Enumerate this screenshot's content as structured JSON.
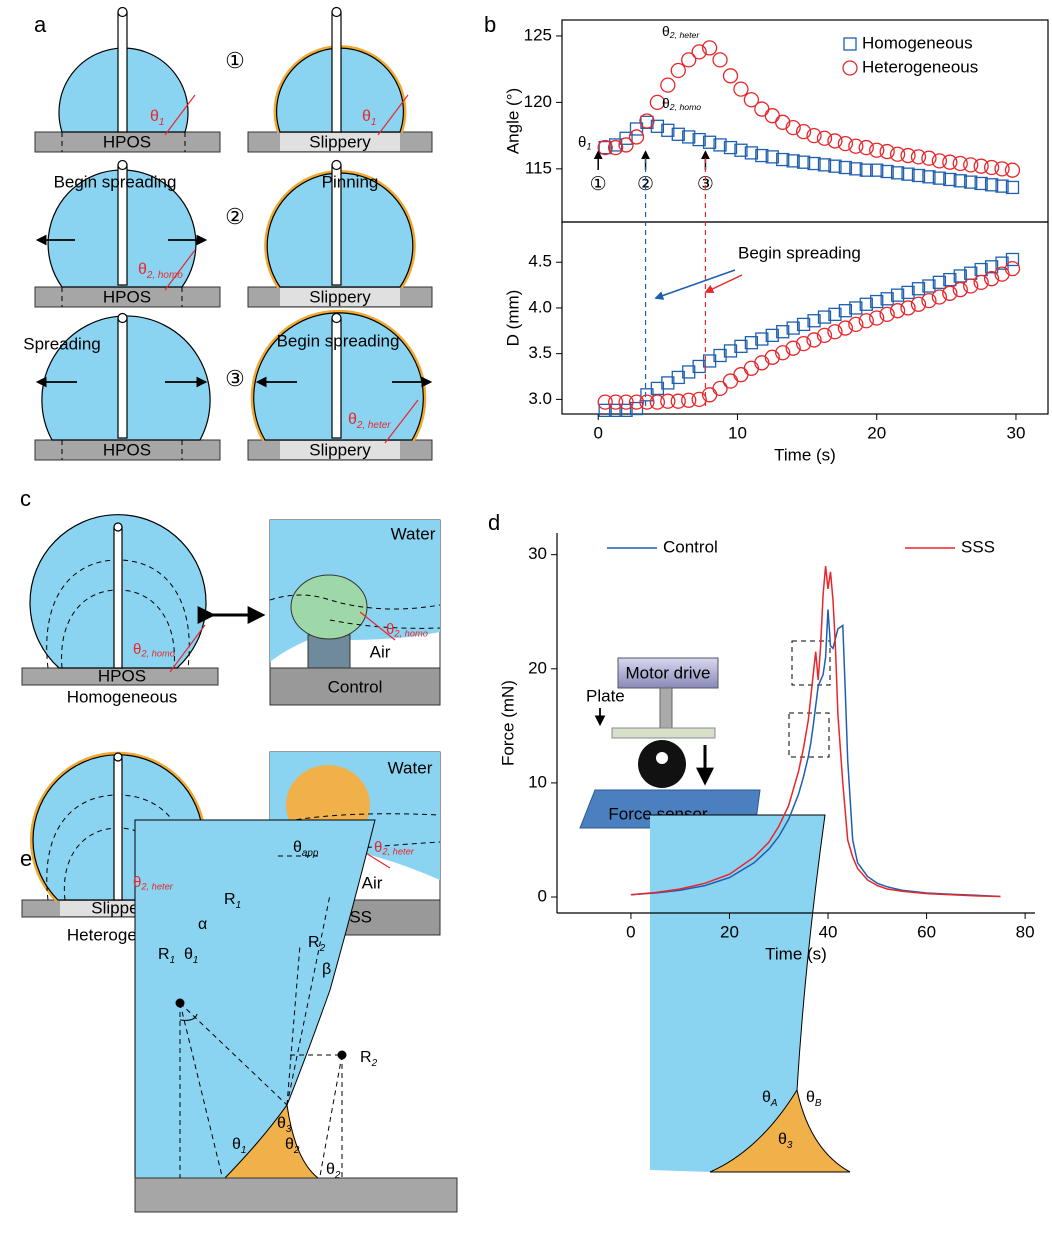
{
  "panel_labels": [
    "a",
    "b",
    "c",
    "d",
    "e"
  ],
  "panel_a": {
    "steps": [
      "①",
      "②",
      "③"
    ],
    "substrates": [
      "HPOS",
      "Slippery",
      "HPOS",
      "Slippery",
      "HPOS",
      "Slippery"
    ],
    "captions": [
      "Begin spreading",
      "Pinning",
      "Spreading",
      "Begin spreading"
    ],
    "angles": [
      {
        "symbol": "θ",
        "sub": "1"
      },
      {
        "symbol": "θ",
        "sub": "1"
      },
      {
        "symbol": "θ",
        "sub": "2, homo"
      },
      {
        "symbol": "θ",
        "sub": "2, heter"
      }
    ]
  },
  "chart_data": [
    {
      "type": "scatter",
      "y_label": "Angle (°)",
      "frame": true,
      "legend": "upper right",
      "xlim": [
        -2.6,
        32.3
      ],
      "ylim": [
        111,
        126.2
      ],
      "yticks": [
        115,
        120,
        125
      ],
      "x": [
        0.5,
        1.25,
        2,
        2.75,
        3.5,
        4.25,
        5,
        5.75,
        6.5,
        7.25,
        8,
        8.75,
        9.5,
        10.25,
        11,
        11.75,
        12.5,
        13.25,
        14,
        14.75,
        15.5,
        16.25,
        17,
        17.75,
        18.5,
        19.25,
        20,
        20.75,
        21.5,
        22.25,
        23,
        23.75,
        24.5,
        25.25,
        26,
        26.75,
        27.5,
        28.25,
        29,
        29.75
      ],
      "series": [
        {
          "name": "Homogeneous",
          "color": "#1f5fb0",
          "marker": "square",
          "values": [
            116.6,
            116.8,
            117.3,
            118.0,
            118.5,
            118.2,
            117.9,
            117.6,
            117.4,
            117.2,
            117.0,
            116.8,
            116.6,
            116.4,
            116.2,
            116.0,
            115.9,
            115.7,
            115.6,
            115.5,
            115.4,
            115.3,
            115.2,
            115.1,
            115.0,
            114.9,
            114.9,
            114.8,
            114.7,
            114.6,
            114.5,
            114.4,
            114.3,
            114.2,
            114.1,
            114.0,
            113.9,
            113.8,
            113.7,
            113.6
          ]
        },
        {
          "name": "Heterogeneous",
          "color": "#e8262b",
          "marker": "circle",
          "values": [
            116.6,
            116.6,
            116.8,
            117.4,
            118.6,
            120.0,
            121.3,
            122.4,
            123.2,
            123.8,
            124.1,
            123.2,
            122.0,
            121.0,
            120.2,
            119.5,
            119.0,
            118.5,
            118.1,
            117.8,
            117.5,
            117.3,
            117.1,
            116.9,
            116.7,
            116.6,
            116.4,
            116.3,
            116.1,
            116.0,
            115.9,
            115.8,
            115.6,
            115.5,
            115.4,
            115.3,
            115.2,
            115.1,
            115.0,
            114.9
          ]
        }
      ],
      "events": [
        {
          "x": 0,
          "label": "①"
        },
        {
          "x": 3.4,
          "label": "②",
          "line_color": "#1f5fb0"
        },
        {
          "x": 7.7,
          "label": "③",
          "line_color": "#e8262b"
        }
      ],
      "annotations": [
        {
          "symbol": "θ",
          "sub": "1"
        },
        {
          "symbol": "θ",
          "sub": "2, heter"
        },
        {
          "symbol": "θ",
          "sub": "2, homo"
        }
      ]
    },
    {
      "type": "scatter",
      "x_label": "Time (s)",
      "y_label": "D (mm)",
      "frame": true,
      "xlim": [
        -2.6,
        32.3
      ],
      "ylim": [
        2.84,
        4.94
      ],
      "xticks": [
        0,
        10,
        20,
        30
      ],
      "yticks": [
        {
          "value": 3,
          "label": "3.0"
        },
        3.5,
        {
          "value": 4,
          "label": "4.0"
        },
        4.5
      ],
      "x": [
        0.5,
        1.25,
        2,
        2.75,
        3.5,
        4.25,
        5,
        5.75,
        6.5,
        7.25,
        8,
        8.75,
        9.5,
        10.25,
        11,
        11.75,
        12.5,
        13.25,
        14,
        14.75,
        15.5,
        16.25,
        17,
        17.75,
        18.5,
        19.25,
        20,
        20.75,
        21.5,
        22.25,
        23,
        23.75,
        24.5,
        25.25,
        26,
        26.75,
        27.5,
        28.25,
        29,
        29.75
      ],
      "series": [
        {
          "name": "Homogeneous",
          "color": "#1f5fb0",
          "marker": "square",
          "values": [
            2.88,
            2.88,
            2.88,
            2.9,
            3.05,
            3.12,
            3.18,
            3.24,
            3.3,
            3.36,
            3.42,
            3.48,
            3.53,
            3.58,
            3.62,
            3.66,
            3.7,
            3.74,
            3.78,
            3.82,
            3.86,
            3.9,
            3.93,
            3.97,
            4.0,
            4.04,
            4.07,
            4.1,
            4.14,
            4.17,
            4.21,
            4.24,
            4.28,
            4.31,
            4.35,
            4.38,
            4.42,
            4.45,
            4.49,
            4.53
          ]
        },
        {
          "name": "Heterogeneous",
          "color": "#e8262b",
          "marker": "circle",
          "values": [
            2.97,
            2.97,
            2.97,
            2.97,
            2.97,
            2.97,
            2.98,
            2.98,
            2.99,
            3.0,
            3.05,
            3.12,
            3.2,
            3.27,
            3.34,
            3.4,
            3.46,
            3.51,
            3.56,
            3.61,
            3.65,
            3.7,
            3.74,
            3.78,
            3.82,
            3.86,
            3.89,
            3.93,
            3.97,
            4.0,
            4.04,
            4.08,
            4.12,
            4.16,
            4.2,
            4.24,
            4.28,
            4.32,
            4.37,
            4.43
          ]
        }
      ],
      "annotation": "Begin spreading"
    },
    {
      "type": "line",
      "x_label": "Time (s)",
      "y_label": "Force (mN)",
      "frame": false,
      "legend": "top",
      "xlim": [
        -15,
        82
      ],
      "ylim": [
        -1.4,
        31.9
      ],
      "xticks": [
        0,
        20,
        40,
        60,
        80
      ],
      "yticks": [
        0,
        10,
        20,
        30
      ],
      "series": [
        {
          "name": "Control",
          "color": "#1f5fb0",
          "x": [
            0,
            5,
            10,
            15,
            20,
            25,
            28,
            30,
            32,
            34,
            35,
            36,
            36.5,
            37,
            38,
            39,
            39.5,
            40,
            40.5,
            41,
            42,
            43,
            43.5,
            44,
            45,
            46,
            48,
            50,
            52,
            55,
            60,
            65,
            70,
            75
          ],
          "values": [
            0.2,
            0.35,
            0.6,
            1.0,
            1.7,
            3.0,
            4.2,
            5.3,
            6.8,
            9.0,
            10.5,
            12.3,
            13.5,
            15.0,
            18.5,
            19.5,
            21,
            25.2,
            22,
            21.8,
            23.5,
            23.8,
            18,
            12,
            5,
            3,
            1.8,
            1.2,
            0.9,
            0.6,
            0.35,
            0.25,
            0.15,
            0.05
          ]
        },
        {
          "name": "SSS",
          "color": "#e8262b",
          "x": [
            0,
            5,
            10,
            15,
            20,
            25,
            28,
            30,
            32,
            34,
            35,
            36,
            37,
            37.5,
            38,
            38.5,
            39,
            39.5,
            40,
            40.5,
            41,
            41.5,
            42,
            43,
            44,
            45,
            46,
            48,
            50,
            52,
            55,
            60,
            65,
            70,
            75
          ],
          "values": [
            0.2,
            0.4,
            0.7,
            1.2,
            2.0,
            3.5,
            4.8,
            6.2,
            8.0,
            11.0,
            13,
            15.5,
            19.5,
            21.5,
            19.0,
            22.0,
            26.5,
            29.0,
            27.0,
            28.5,
            26.0,
            22.0,
            16,
            10,
            5,
            3.5,
            2.5,
            1.5,
            1.0,
            0.7,
            0.5,
            0.3,
            0.2,
            0.1,
            0.05
          ]
        }
      ]
    }
  ],
  "panel_c": {
    "top": {
      "drop_substrate": "HPOS",
      "drop_caption": "Homogeneous",
      "drop_angle": {
        "symbol": "θ",
        "sub": "2, homo"
      },
      "water": "Water",
      "air": "Air",
      "surface": "Control",
      "pillar_angle": {
        "symbol": "θ",
        "sub": "2, homo"
      }
    },
    "bottom": {
      "drop_substrate": "Slippery",
      "drop_caption": "Heterogeneous",
      "drop_angle": {
        "symbol": "θ",
        "sub": "2, heter"
      },
      "water": "Water",
      "air": "Air",
      "surface": "SSS",
      "pillar_angle": {
        "symbol": "θ",
        "sub": "2, heter"
      }
    }
  },
  "panel_d_inset": {
    "labels": [
      "Motor drive",
      "Plate",
      "Force sensor"
    ]
  },
  "panel_e": {
    "left": [
      {
        "symbol": "θ",
        "sub": "app"
      },
      {
        "symbol": "α"
      },
      {
        "symbol": "R",
        "sub": "1"
      },
      {
        "symbol": "R",
        "sub": "1"
      },
      {
        "symbol": "θ",
        "sub": "1"
      },
      {
        "symbol": "R",
        "sub": "2"
      },
      {
        "symbol": "β"
      },
      {
        "symbol": "R",
        "sub": "2"
      },
      {
        "symbol": "θ",
        "sub": "3"
      },
      {
        "symbol": "θ",
        "sub": "1"
      },
      {
        "symbol": "θ",
        "sub": "2"
      },
      {
        "symbol": "θ",
        "sub": "2"
      }
    ],
    "right": [
      {
        "symbol": "θ",
        "sub": "A"
      },
      {
        "symbol": "θ",
        "sub": "B"
      },
      {
        "symbol": "θ",
        "sub": "3"
      }
    ]
  }
}
